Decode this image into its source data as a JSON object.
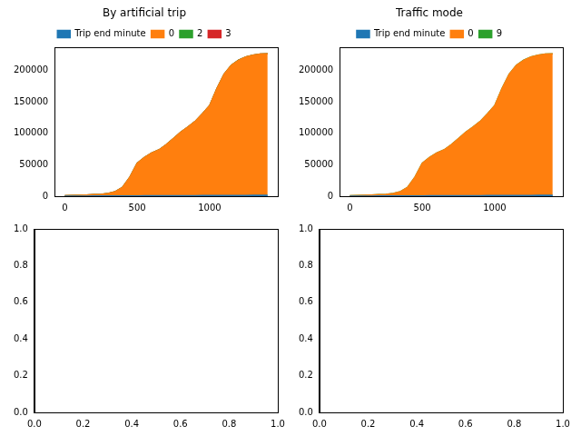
{
  "chart_data": [
    {
      "type": "area",
      "title": "By artificial trip",
      "stacked": true,
      "grid": false,
      "legend": "top",
      "x": [
        0,
        50,
        100,
        150,
        200,
        250,
        300,
        350,
        400,
        450,
        500,
        550,
        600,
        650,
        700,
        750,
        800,
        850,
        900,
        950,
        1000,
        1050,
        1100,
        1150,
        1200,
        1250,
        1300,
        1350,
        1400
      ],
      "series": [
        {
          "name": "Trip end minute",
          "color": "#1f77b4",
          "values": [
            0,
            50,
            100,
            150,
            200,
            250,
            300,
            350,
            400,
            450,
            500,
            550,
            600,
            650,
            700,
            750,
            800,
            850,
            900,
            950,
            1000,
            1050,
            1100,
            1150,
            1200,
            1250,
            1300,
            1350,
            1400
          ]
        },
        {
          "name": "0",
          "color": "#ff7f0e",
          "values": [
            800,
            1000,
            1300,
            1700,
            2200,
            2800,
            4000,
            7000,
            14000,
            30000,
            52000,
            61000,
            68000,
            73000,
            81000,
            91000,
            101000,
            109000,
            118000,
            130000,
            143000,
            170000,
            193000,
            207000,
            215000,
            220000,
            223000,
            224500,
            225000
          ]
        },
        {
          "name": "2",
          "color": "#2ca02c",
          "values": [
            0,
            0,
            0,
            0,
            0,
            0,
            0,
            0,
            1,
            1,
            2,
            3,
            3,
            4,
            5,
            6,
            7,
            8,
            9,
            10,
            11,
            13,
            15,
            16,
            17,
            18,
            18,
            19,
            19
          ]
        },
        {
          "name": "3",
          "color": "#d62728",
          "values": [
            0,
            0,
            0,
            0,
            0,
            0,
            0,
            0,
            0,
            1,
            1,
            1,
            2,
            2,
            2,
            3,
            3,
            3,
            4,
            4,
            5,
            5,
            6,
            6,
            7,
            7,
            7,
            8,
            8
          ]
        }
      ],
      "xlim": [
        -70,
        1470
      ],
      "xticks": [
        0,
        500,
        1000
      ],
      "ylim": [
        0,
        236250
      ],
      "yticks": [
        0,
        50000,
        100000,
        150000,
        200000
      ]
    },
    {
      "type": "area",
      "title": "Traffic mode",
      "stacked": true,
      "grid": false,
      "legend": "top",
      "x": [
        0,
        50,
        100,
        150,
        200,
        250,
        300,
        350,
        400,
        450,
        500,
        550,
        600,
        650,
        700,
        750,
        800,
        850,
        900,
        950,
        1000,
        1050,
        1100,
        1150,
        1200,
        1250,
        1300,
        1350,
        1400
      ],
      "series": [
        {
          "name": "Trip end minute",
          "color": "#1f77b4",
          "values": [
            0,
            50,
            100,
            150,
            200,
            250,
            300,
            350,
            400,
            450,
            500,
            550,
            600,
            650,
            700,
            750,
            800,
            850,
            900,
            950,
            1000,
            1050,
            1100,
            1150,
            1200,
            1250,
            1300,
            1350,
            1400
          ]
        },
        {
          "name": "0",
          "color": "#ff7f0e",
          "values": [
            800,
            1000,
            1300,
            1700,
            2200,
            2800,
            4000,
            7000,
            14000,
            30000,
            52000,
            61000,
            68000,
            73000,
            81000,
            91000,
            101000,
            109000,
            118000,
            130000,
            143000,
            170000,
            193000,
            207000,
            215000,
            220000,
            223000,
            224500,
            225000
          ]
        },
        {
          "name": "9",
          "color": "#2ca02c",
          "values": [
            0,
            0,
            0,
            0,
            0,
            0,
            0,
            0,
            1,
            2,
            3,
            4,
            5,
            6,
            7,
            9,
            10,
            11,
            13,
            14,
            16,
            18,
            21,
            22,
            24,
            25,
            25,
            27,
            27
          ]
        }
      ],
      "xlim": [
        -70,
        1470
      ],
      "xticks": [
        0,
        500,
        1000
      ],
      "ylim": [
        0,
        236250
      ],
      "yticks": [
        0,
        50000,
        100000,
        150000,
        200000
      ]
    },
    {
      "type": "line",
      "grid": false,
      "series": [],
      "xlim": [
        0,
        1
      ],
      "xticks": [
        {
          "value": 0,
          "label": "0.0"
        },
        0.2,
        0.4,
        0.6,
        0.8,
        {
          "value": 1,
          "label": "1.0"
        }
      ],
      "ylim": [
        0,
        1
      ],
      "yticks": [
        {
          "value": 0,
          "label": "0.0"
        },
        0.2,
        0.4,
        0.6,
        0.8,
        {
          "value": 1,
          "label": "1.0"
        }
      ]
    },
    {
      "type": "line",
      "grid": false,
      "series": [],
      "xlim": [
        0,
        1
      ],
      "xticks": [
        {
          "value": 0,
          "label": "0.0"
        },
        0.2,
        0.4,
        0.6,
        0.8,
        {
          "value": 1,
          "label": "1.0"
        }
      ],
      "ylim": [
        0,
        1
      ],
      "yticks": [
        {
          "value": 0,
          "label": "0.0"
        },
        0.2,
        0.4,
        0.6,
        0.8,
        {
          "value": 1,
          "label": "1.0"
        }
      ]
    }
  ]
}
